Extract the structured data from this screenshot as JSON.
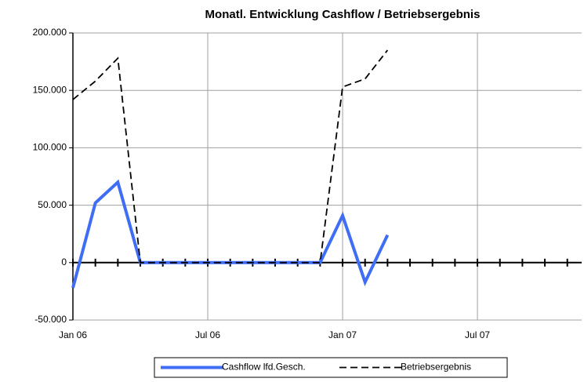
{
  "chart_data": {
    "type": "line",
    "title": "Monatl. Entwicklung Cashflow / Betriebsergebnis",
    "categories": [
      "Jan 06",
      null,
      null,
      null,
      null,
      null,
      "Jul 06",
      null,
      null,
      null,
      null,
      null,
      "Jan 07",
      null,
      null,
      null,
      null,
      null,
      "Jul 07",
      null,
      null,
      null,
      null
    ],
    "series": [
      {
        "name": "Cashflow lfd.Gesch.",
        "color": "#3f6ef5",
        "dash": false,
        "values": [
          -22000,
          52000,
          70000,
          0,
          0,
          0,
          0,
          0,
          0,
          0,
          0,
          0,
          41000,
          -17000,
          24000,
          null,
          null,
          null,
          null,
          null,
          null,
          null,
          null
        ]
      },
      {
        "name": "Betriebsergebnis",
        "color": "#000000",
        "dash": true,
        "values": [
          142000,
          158000,
          178000,
          0,
          0,
          0,
          0,
          0,
          0,
          0,
          0,
          0,
          153000,
          160000,
          185000,
          null,
          null,
          null,
          null,
          null,
          null,
          null,
          null
        ]
      }
    ],
    "ylim": [
      -50000,
      200000
    ],
    "yticks": [
      {
        "value": -50000,
        "label": "-50.000"
      },
      0,
      {
        "value": 50000,
        "label": "50.000"
      },
      {
        "value": 100000,
        "label": "100.000"
      },
      {
        "value": 150000,
        "label": "150.000"
      },
      {
        "value": 200000,
        "label": "200.000"
      }
    ],
    "grid": true,
    "legend": "bottom"
  }
}
